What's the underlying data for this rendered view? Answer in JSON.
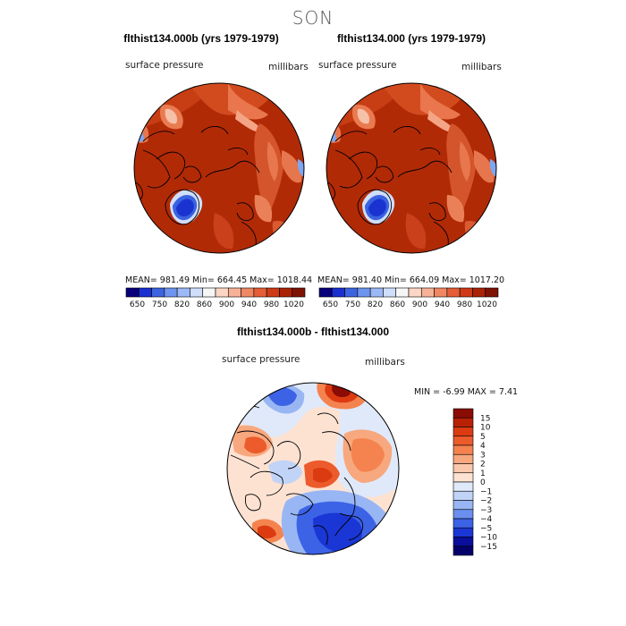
{
  "season": "SON",
  "panels": [
    {
      "title": "flthist134.000b (yrs 1979-1979)",
      "variable": "surface pressure",
      "units": "millibars",
      "stats": {
        "mean": "981.49",
        "min": "664.45",
        "max": "1018.44"
      },
      "stats_text": "MEAN= 981.49   Min= 664.45   Max= 1018.44"
    },
    {
      "title": "flthist134.000 (yrs 1979-1979)",
      "variable": "surface pressure",
      "units": "millibars",
      "stats": {
        "mean": "981.40",
        "min": "664.09",
        "max": "1017.20"
      },
      "stats_text": "MEAN= 981.40   Min= 664.09   Max= 1017.20"
    },
    {
      "title": "flthist134.000b - flthist134.000",
      "variable": "surface pressure",
      "units": "millibars",
      "stats": {
        "min": "-6.99",
        "max": "7.41"
      },
      "stats_text": "MIN =   -6.99  MAX =    7.41"
    }
  ],
  "chart_data": [
    {
      "type": "heatmap",
      "projection": "north polar stereographic",
      "title": "flthist134.000b (yrs 1979-1979)",
      "variable": "surface pressure",
      "units": "millibars",
      "mean": 981.49,
      "min": 664.45,
      "max": 1018.44,
      "colorbar_ticks": [
        "650",
        "750",
        "820",
        "860",
        "900",
        "940",
        "980",
        "1020"
      ],
      "colorbar_colors": [
        "#08007a",
        "#1a2fd0",
        "#3d64e0",
        "#6d94ee",
        "#9cb8f6",
        "#cfdefb",
        "#f6f6f6",
        "#fbd6c4",
        "#f7b196",
        "#f08763",
        "#e45d37",
        "#cf3a16",
        "#aa2306",
        "#7e1203"
      ]
    },
    {
      "type": "heatmap",
      "projection": "north polar stereographic",
      "title": "flthist134.000 (yrs 1979-1979)",
      "variable": "surface pressure",
      "units": "millibars",
      "mean": 981.4,
      "min": 664.09,
      "max": 1017.2,
      "colorbar_ticks": [
        "650",
        "750",
        "820",
        "860",
        "900",
        "940",
        "980",
        "1020"
      ],
      "colorbar_colors": [
        "#08007a",
        "#1a2fd0",
        "#3d64e0",
        "#6d94ee",
        "#9cb8f6",
        "#cfdefb",
        "#f6f6f6",
        "#fbd6c4",
        "#f7b196",
        "#f08763",
        "#e45d37",
        "#cf3a16",
        "#aa2306",
        "#7e1203"
      ]
    },
    {
      "type": "heatmap",
      "projection": "north polar stereographic",
      "title": "flthist134.000b - flthist134.000",
      "variable": "surface pressure",
      "units": "millibars",
      "min": -6.99,
      "max": 7.41,
      "colorbar_ticks": [
        "15",
        "10",
        "5",
        "4",
        "3",
        "2",
        "1",
        "0",
        "−1",
        "−2",
        "−3",
        "−4",
        "−5",
        "−10",
        "−15"
      ],
      "colorbar_colors": [
        "#8a0c03",
        "#b82106",
        "#dc3b12",
        "#ec5b2c",
        "#f4834f",
        "#f8a87e",
        "#fbc8ab",
        "#fde2d2",
        "#dfe9fa",
        "#c1d4f7",
        "#98b6f3",
        "#6a8fee",
        "#3c62e6",
        "#1a36d4",
        "#0a0e9a",
        "#04006a"
      ]
    }
  ]
}
